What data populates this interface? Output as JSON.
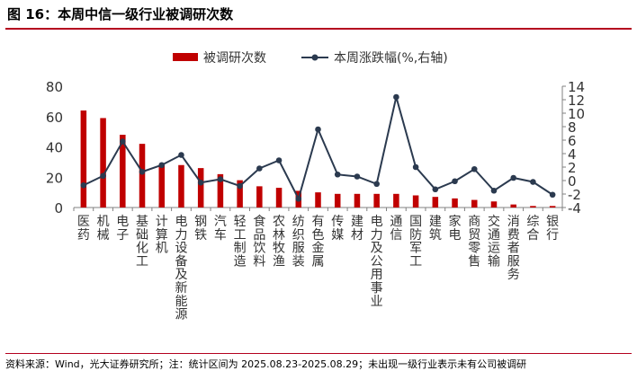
{
  "header": {
    "title": "图 16：本周中信一级行业被调研次数"
  },
  "footer": {
    "source": "资料来源：Wind，光大证券研究所；注：统计区间为 2025.08.23-2025.08.29；未出现一级行业表示未有公司被调研"
  },
  "colors": {
    "bar": "#c00000",
    "line": "#2b3a4f",
    "axis": "#808080",
    "accent": "#b4001e"
  },
  "chart_data": {
    "type": "bar+line",
    "categories": [
      "医药",
      "机械",
      "电子",
      "基础化工",
      "计算机",
      "电力设备及新能源",
      "钢铁",
      "汽车",
      "轻工制造",
      "食品饮料",
      "农林牧渔",
      "纺织服装",
      "有色金属",
      "传媒",
      "建材",
      "电力及公用事业",
      "通信",
      "国防军工",
      "建筑",
      "家电",
      "商贸零售",
      "交通运输",
      "消费者服务",
      "综合",
      "银行"
    ],
    "series": [
      {
        "name": "被调研次数",
        "type": "bar",
        "axis": "left",
        "values": [
          64,
          59,
          48,
          42,
          28,
          28,
          26,
          22,
          18,
          14,
          13,
          11,
          10,
          9,
          9,
          9,
          9,
          8,
          7,
          6,
          5,
          4,
          2,
          1,
          1
        ]
      },
      {
        "name": "本周涨跌幅(%,右轴)",
        "type": "line",
        "axis": "right",
        "values": [
          -0.7,
          0.7,
          5.8,
          1.3,
          2.3,
          3.8,
          -0.3,
          0.2,
          -0.8,
          1.8,
          3.0,
          -2.7,
          7.6,
          0.9,
          0.6,
          -0.5,
          12.4,
          2.0,
          -1.3,
          -0.1,
          1.7,
          -1.5,
          0.4,
          -0.2,
          -2.1
        ]
      }
    ],
    "yleft": {
      "min": 0,
      "max": 80,
      "ticks": [
        0,
        20,
        40,
        60,
        80
      ]
    },
    "yright": {
      "min": -4,
      "max": 14,
      "ticks": [
        -4,
        -2,
        0,
        2,
        4,
        6,
        8,
        10,
        12,
        14
      ]
    },
    "legend": "top-center",
    "grid": false
  }
}
